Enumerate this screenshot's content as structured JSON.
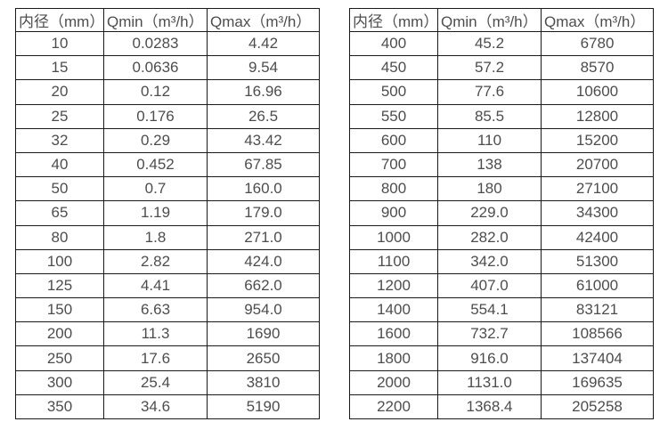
{
  "page": {
    "background_color": "#ffffff",
    "text_color": "#4d4d4d",
    "border_color": "#1a1a1a"
  },
  "tables": [
    {
      "name": "small-diameter-flow-table",
      "headers": [
        "内径（mm）",
        "Qmin（m³/h）",
        "Qmax（m³/h）"
      ],
      "rows": [
        [
          "10",
          "0.0283",
          "4.42"
        ],
        [
          "15",
          "0.0636",
          "9.54"
        ],
        [
          "20",
          "0.12",
          "16.96"
        ],
        [
          "25",
          "0.176",
          "26.5"
        ],
        [
          "32",
          "0.29",
          "43.42"
        ],
        [
          "40",
          "0.452",
          "67.85"
        ],
        [
          "50",
          "0.7",
          "160.0"
        ],
        [
          "65",
          "1.19",
          "179.0"
        ],
        [
          "80",
          "1.8",
          "271.0"
        ],
        [
          "100",
          "2.82",
          "424.0"
        ],
        [
          "125",
          "4.41",
          "662.0"
        ],
        [
          "150",
          "6.63",
          "954.0"
        ],
        [
          "200",
          "11.3",
          "1690"
        ],
        [
          "250",
          "17.6",
          "2650"
        ],
        [
          "300",
          "25.4",
          "3810"
        ],
        [
          "350",
          "34.6",
          "5190"
        ]
      ]
    },
    {
      "name": "large-diameter-flow-table",
      "headers": [
        "内径（mm）",
        "Qmin（m³/h）",
        "Qmax（m³/h）"
      ],
      "rows": [
        [
          "400",
          "45.2",
          "6780"
        ],
        [
          "450",
          "57.2",
          "8570"
        ],
        [
          "500",
          "77.6",
          "10600"
        ],
        [
          "550",
          "85.5",
          "12800"
        ],
        [
          "600",
          "110",
          "15200"
        ],
        [
          "700",
          "138",
          "20700"
        ],
        [
          "800",
          "180",
          "27100"
        ],
        [
          "900",
          "229.0",
          "34300"
        ],
        [
          "1000",
          "282.0",
          "42400"
        ],
        [
          "1100",
          "342.0",
          "51300"
        ],
        [
          "1200",
          "407.0",
          "61000"
        ],
        [
          "1400",
          "554.1",
          "83121"
        ],
        [
          "1600",
          "732.7",
          "108566"
        ],
        [
          "1800",
          "916.0",
          "137404"
        ],
        [
          "2000",
          "1131.0",
          "169635"
        ],
        [
          "2200",
          "1368.4",
          "205258"
        ]
      ]
    }
  ]
}
